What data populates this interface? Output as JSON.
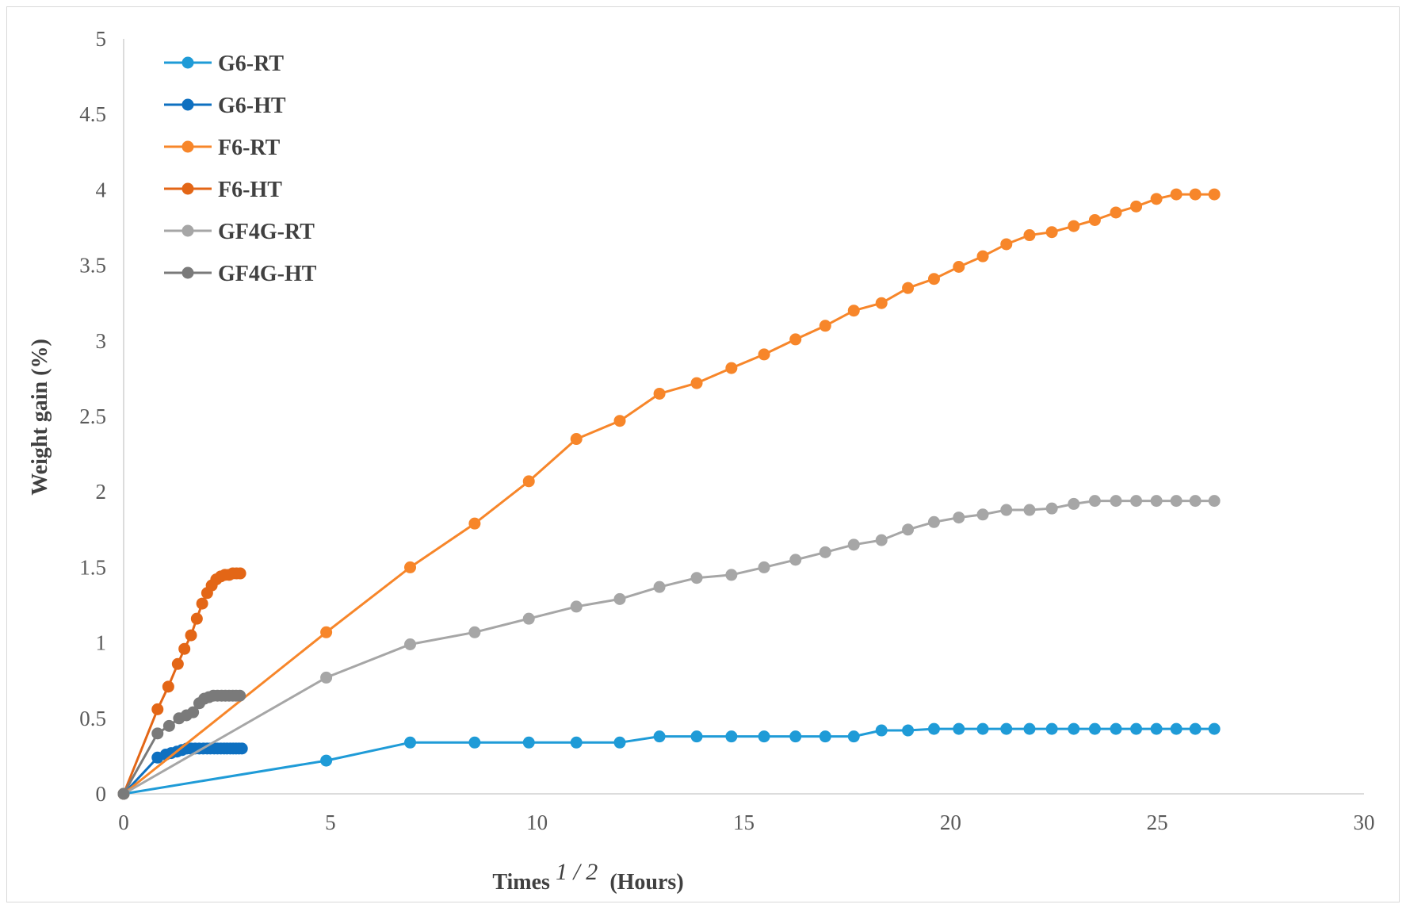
{
  "chart_data": {
    "type": "line",
    "title": "",
    "xlabel": "Times",
    "xlabel_superscript": "1 / 2",
    "xlabel_unit": "(Hours)",
    "ylabel": "Weight gain (%)",
    "xlim": [
      0,
      30
    ],
    "ylim": [
      0,
      5
    ],
    "xticks": [
      0,
      5,
      10,
      15,
      20,
      25,
      30
    ],
    "yticks": [
      0,
      0.5,
      1,
      1.5,
      2,
      2.5,
      3,
      3.5,
      4,
      4.5,
      5
    ],
    "grid": false,
    "legend_position": "top-left",
    "series": [
      {
        "name": "G6-RT",
        "color": "#1f9bd7",
        "x": [
          0,
          4.9,
          6.93,
          8.49,
          9.8,
          10.95,
          12,
          12.96,
          13.86,
          14.7,
          15.49,
          16.25,
          16.97,
          17.66,
          18.33,
          18.97,
          19.6,
          20.2,
          20.78,
          21.35,
          21.91,
          22.45,
          22.98,
          23.49,
          24,
          24.49,
          24.98,
          25.46,
          25.92,
          26.38
        ],
        "y": [
          0,
          0.22,
          0.34,
          0.34,
          0.34,
          0.34,
          0.34,
          0.38,
          0.38,
          0.38,
          0.38,
          0.38,
          0.38,
          0.38,
          0.42,
          0.42,
          0.43,
          0.43,
          0.43,
          0.43,
          0.43,
          0.43,
          0.43,
          0.43,
          0.43,
          0.43,
          0.43,
          0.43,
          0.43,
          0.43
        ]
      },
      {
        "name": "G6-HT",
        "color": "#0e70c0",
        "x": [
          0,
          0.82,
          1.02,
          1.15,
          1.29,
          1.41,
          1.53,
          1.63,
          1.73,
          1.83,
          1.93,
          2.02,
          2.1,
          2.19,
          2.27,
          2.35,
          2.43,
          2.5,
          2.58,
          2.65,
          2.72,
          2.79,
          2.86
        ],
        "y": [
          0,
          0.24,
          0.26,
          0.27,
          0.28,
          0.29,
          0.3,
          0.3,
          0.3,
          0.3,
          0.3,
          0.3,
          0.3,
          0.3,
          0.3,
          0.3,
          0.3,
          0.3,
          0.3,
          0.3,
          0.3,
          0.3,
          0.3
        ]
      },
      {
        "name": "F6-RT",
        "color": "#f7862a",
        "x": [
          0,
          4.9,
          6.93,
          8.49,
          9.8,
          10.95,
          12,
          12.96,
          13.86,
          14.7,
          15.49,
          16.25,
          16.97,
          17.66,
          18.33,
          18.97,
          19.6,
          20.2,
          20.78,
          21.35,
          21.91,
          22.45,
          22.98,
          23.49,
          24,
          24.49,
          24.98,
          25.46,
          25.92,
          26.38
        ],
        "y": [
          0,
          1.07,
          1.5,
          1.79,
          2.07,
          2.35,
          2.47,
          2.65,
          2.72,
          2.82,
          2.91,
          3.01,
          3.1,
          3.2,
          3.25,
          3.35,
          3.41,
          3.49,
          3.56,
          3.64,
          3.7,
          3.72,
          3.76,
          3.8,
          3.85,
          3.89,
          3.94,
          3.97,
          3.97,
          3.97
        ]
      },
      {
        "name": "F6-HT",
        "color": "#e36616",
        "x": [
          0,
          0.82,
          1.08,
          1.31,
          1.47,
          1.63,
          1.77,
          1.9,
          2.02,
          2.13,
          2.24,
          2.35,
          2.45,
          2.55,
          2.64,
          2.73,
          2.82
        ],
        "y": [
          0,
          0.56,
          0.71,
          0.86,
          0.96,
          1.05,
          1.16,
          1.26,
          1.33,
          1.38,
          1.42,
          1.44,
          1.45,
          1.45,
          1.46,
          1.46,
          1.46
        ]
      },
      {
        "name": "GF4G-RT",
        "color": "#a6a6a6",
        "x": [
          0,
          4.9,
          6.93,
          8.49,
          9.8,
          10.95,
          12,
          12.96,
          13.86,
          14.7,
          15.49,
          16.25,
          16.97,
          17.66,
          18.33,
          18.97,
          19.6,
          20.2,
          20.78,
          21.35,
          21.91,
          22.45,
          22.98,
          23.49,
          24,
          24.49,
          24.98,
          25.46,
          25.92,
          26.38
        ],
        "y": [
          0,
          0.77,
          0.99,
          1.07,
          1.16,
          1.24,
          1.29,
          1.37,
          1.43,
          1.45,
          1.5,
          1.55,
          1.6,
          1.65,
          1.68,
          1.75,
          1.8,
          1.83,
          1.85,
          1.88,
          1.88,
          1.89,
          1.92,
          1.94,
          1.94,
          1.94,
          1.94,
          1.94,
          1.94,
          1.94
        ]
      },
      {
        "name": "GF4G-HT",
        "color": "#7a7a7a",
        "x": [
          0,
          0.82,
          1.1,
          1.34,
          1.52,
          1.68,
          1.83,
          1.95,
          2.06,
          2.17,
          2.27,
          2.37,
          2.46,
          2.55,
          2.64,
          2.72,
          2.81
        ],
        "y": [
          0,
          0.4,
          0.45,
          0.5,
          0.52,
          0.54,
          0.6,
          0.63,
          0.64,
          0.65,
          0.65,
          0.65,
          0.65,
          0.65,
          0.65,
          0.65,
          0.65
        ]
      }
    ]
  }
}
